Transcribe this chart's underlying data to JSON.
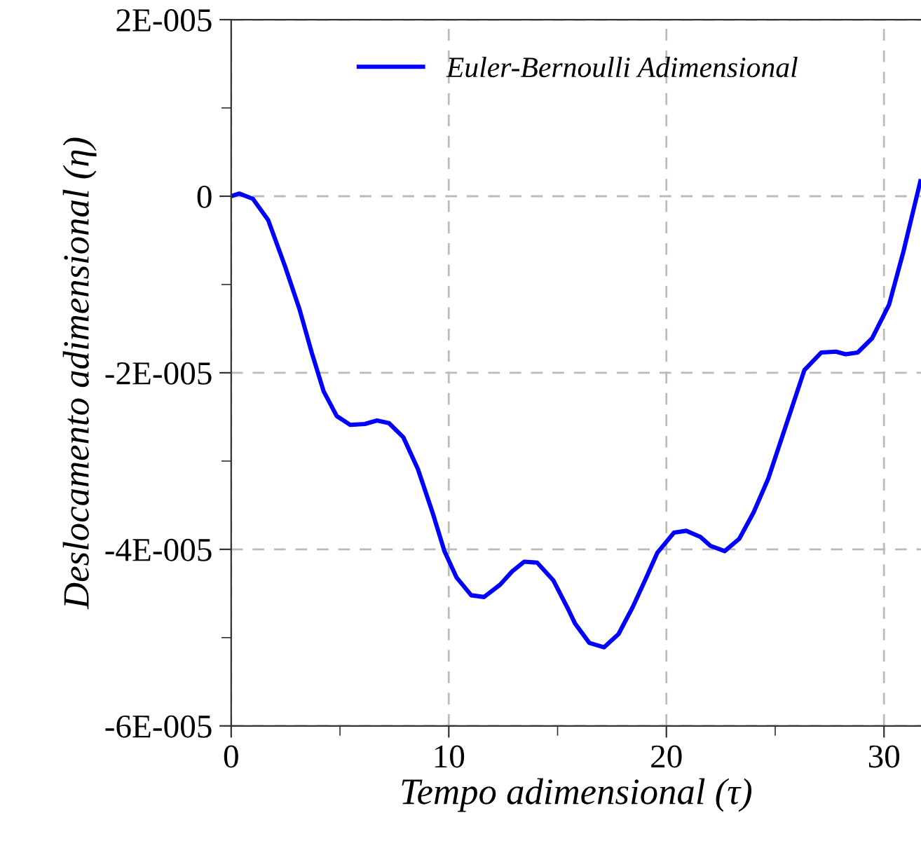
{
  "chart_data": {
    "type": "line",
    "xlabel": "Tempo adimensional (τ)",
    "ylabel": "Deslocamento adimensional (η)",
    "xlim": [
      0,
      31.7
    ],
    "ylim": [
      -6e-05,
      2e-05
    ],
    "xticks": [
      0,
      {
        "value": 5,
        "label": null
      },
      10,
      {
        "value": 15,
        "label": null
      },
      20,
      {
        "value": 25,
        "label": null
      },
      30
    ],
    "yticks": [
      {
        "value": -6e-05,
        "label": "-6E-005"
      },
      {
        "value": -5e-05,
        "label": null
      },
      {
        "value": -4e-05,
        "label": "-4E-005"
      },
      {
        "value": -3e-05,
        "label": null
      },
      {
        "value": -2e-05,
        "label": "-2E-005"
      },
      {
        "value": -1e-05,
        "label": null
      },
      {
        "value": 0,
        "label": "0"
      },
      {
        "value": 1e-05,
        "label": null
      },
      {
        "value": 2e-05,
        "label": "2E-005"
      }
    ],
    "grid": true,
    "legend": "top right",
    "marker": "none",
    "line_style": "solid",
    "x": [
      0,
      0.37,
      1.0,
      1.7,
      2.47,
      3.14,
      3.7,
      4.25,
      4.85,
      5.47,
      6.14,
      6.7,
      7.25,
      7.91,
      8.58,
      9.25,
      9.8,
      10.36,
      11.03,
      11.62,
      12.36,
      12.91,
      13.47,
      14.06,
      14.8,
      15.47,
      15.8,
      16.46,
      17.13,
      17.8,
      18.46,
      19.02,
      19.58,
      20.35,
      20.91,
      21.57,
      22.02,
      22.68,
      23.35,
      24.01,
      24.68,
      25.57,
      26.34,
      27.12,
      27.79,
      28.24,
      28.79,
      29.45,
      30.23,
      30.9,
      31.67
    ],
    "series": [
      {
        "name": "Euler-Bernoulli Adimensional",
        "color": "#0000ff",
        "values": [
          0,
          3e-07,
          -3e-07,
          -2.7e-06,
          -7.9e-06,
          -1.28e-05,
          -1.77e-05,
          -2.21e-05,
          -2.49e-05,
          -2.59e-05,
          -2.58e-05,
          -2.54e-05,
          -2.57e-05,
          -2.73e-05,
          -3.09e-05,
          -3.58e-05,
          -4.02e-05,
          -4.32e-05,
          -4.52e-05,
          -4.54e-05,
          -4.4e-05,
          -4.25e-05,
          -4.14e-05,
          -4.15e-05,
          -4.35e-05,
          -4.67e-05,
          -4.84e-05,
          -5.06e-05,
          -5.11e-05,
          -4.96e-05,
          -4.65e-05,
          -4.35e-05,
          -4.04e-05,
          -3.81e-05,
          -3.79e-05,
          -3.86e-05,
          -3.96e-05,
          -4.02e-05,
          -3.88e-05,
          -3.58e-05,
          -3.2e-05,
          -2.54e-05,
          -1.97e-05,
          -1.77e-05,
          -1.76e-05,
          -1.79e-05,
          -1.77e-05,
          -1.61e-05,
          -1.23e-05,
          -6.2e-06,
          1.7e-06
        ]
      }
    ]
  }
}
